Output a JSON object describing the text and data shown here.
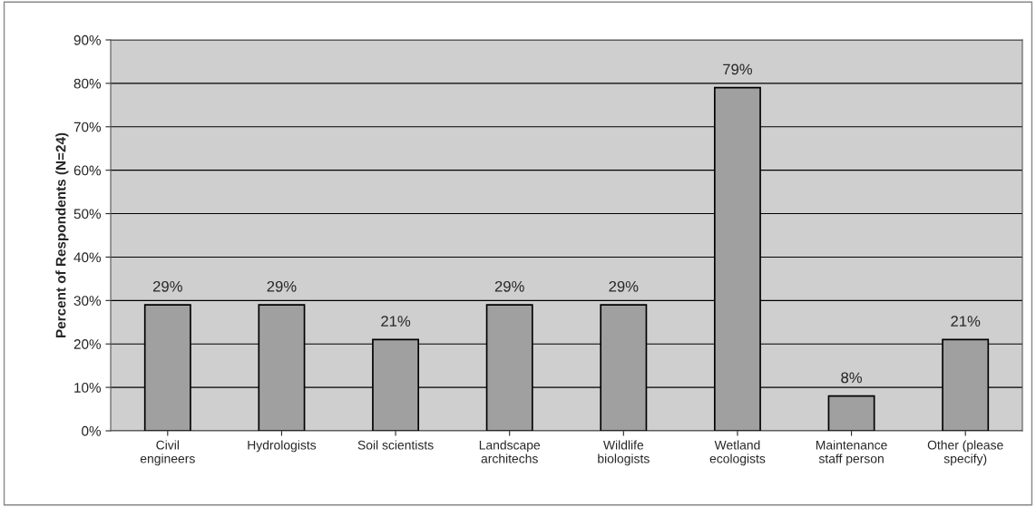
{
  "chart_data": {
    "type": "bar",
    "ylabel": "Percent of Respondents (N=24)",
    "categories": [
      "Civil\nengineers",
      "Hydrologists",
      "Soil scientists",
      "Landscape\narchitechs",
      "Wildlife\nbiologists",
      "Wetland\necologists",
      "Maintenance\nstaff person",
      "Other (please\nspecify)"
    ],
    "values": [
      29,
      29,
      21,
      29,
      29,
      79,
      8,
      21
    ],
    "value_labels": [
      "29%",
      "29%",
      "21%",
      "29%",
      "29%",
      "79%",
      "8%",
      "21%"
    ],
    "color": "#a0a0a0",
    "ylim": [
      0,
      90
    ],
    "yticks": [
      {
        "value": 0,
        "label": "0%"
      },
      {
        "value": 10,
        "label": "10%"
      },
      {
        "value": 20,
        "label": "20%"
      },
      {
        "value": 30,
        "label": "30%"
      },
      {
        "value": 40,
        "label": "40%"
      },
      {
        "value": 50,
        "label": "50%"
      },
      {
        "value": 60,
        "label": "60%"
      },
      {
        "value": 70,
        "label": "70%"
      },
      {
        "value": 80,
        "label": "80%"
      },
      {
        "value": 90,
        "label": "90%"
      }
    ],
    "grid": "y"
  }
}
